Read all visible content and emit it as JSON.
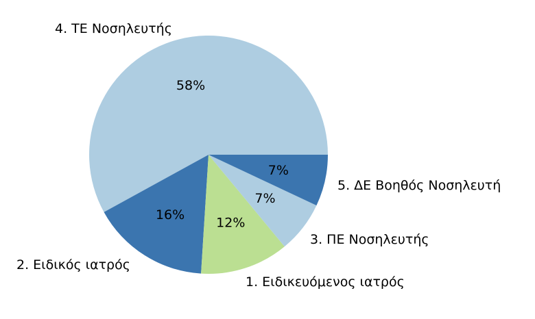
{
  "chart_data": {
    "type": "pie",
    "title": "",
    "start_angle_deg": 0,
    "direction": "counterclockwise",
    "slices": [
      {
        "label": "4. ΤΕ Νοσηλευτής",
        "value": 58,
        "pct_label": "58%",
        "color": "#aecde1"
      },
      {
        "label": "2. Ειδικός ιατρός",
        "value": 16,
        "pct_label": "16%",
        "color": "#3b75af"
      },
      {
        "label": "1. Ειδικευόμενος ιατρός",
        "value": 12,
        "pct_label": "12%",
        "color": "#bbdf92"
      },
      {
        "label": "3. ΠΕ Νοσηλευτής",
        "value": 7,
        "pct_label": "7%",
        "color": "#aecde1"
      },
      {
        "label": "5. ΔΕ Βοηθός Νοσηλευτή",
        "value": 7,
        "pct_label": "7%",
        "color": "#3b75af"
      }
    ]
  }
}
